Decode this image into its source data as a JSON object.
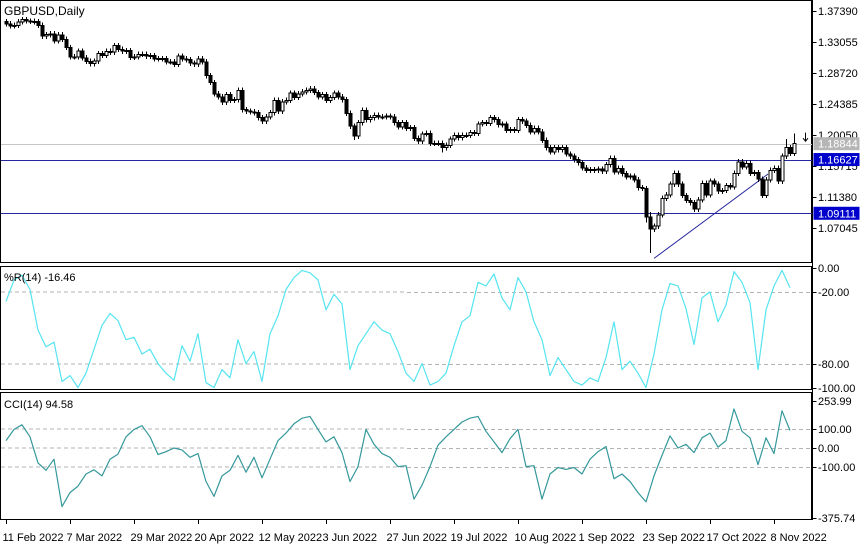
{
  "window": {
    "title": "GBPUSD,Daily"
  },
  "colors": {
    "background": "#ffffff",
    "frame": "#000000",
    "candle_up_fill": "#ffffff",
    "candle_down_fill": "#000000",
    "candle_outline": "#000000",
    "wpr_line": "#55e4f0",
    "cci_line": "#35989b",
    "dashed_level": "#b3b3b3",
    "current_price_line": "#c6c6c6",
    "support_line": "#28289e",
    "badge_current_bg": "#b5b5b5",
    "badge_level_bg": "#0000cc",
    "badge_text": "#ffffff",
    "text": "#000000"
  },
  "chart_data": [
    {
      "type": "candlestick",
      "title": "GBPUSD,Daily",
      "symbol": "GBPUSD",
      "timeframe": "Daily",
      "ylim": [
        1.0229,
        1.3894
      ],
      "x_tick_labels": [
        "11 Feb 2022",
        "7 Mar 2022",
        "29 Mar 2022",
        "20 Apr 2022",
        "12 May 2022",
        "3 Jun 2022",
        "27 Jun 2022",
        "19 Jul 2022",
        "10 Aug 2022",
        "1 Sep 2022",
        "23 Sep 2022",
        "17 Oct 2022",
        "8 Nov 2022"
      ],
      "x_tick_candle_indexes": [
        0,
        16,
        32,
        48,
        64,
        80,
        96,
        112,
        128,
        144,
        160,
        176,
        192
      ],
      "price_axis_ticks": [
        {
          "v": 1.3739,
          "label": "1.37390"
        },
        {
          "v": 1.33055,
          "label": "1.33055"
        },
        {
          "v": 1.2872,
          "label": "1.28720"
        },
        {
          "v": 1.24385,
          "label": "1.24385"
        },
        {
          "v": 1.2005,
          "label": "1.20050"
        },
        {
          "v": 1.15715,
          "label": "1.15715"
        },
        {
          "v": 1.1138,
          "label": "1.11380"
        },
        {
          "v": 1.07045,
          "label": "1.07045"
        }
      ],
      "price_levels": [
        {
          "price": 1.18844,
          "label": "1.18844",
          "kind": "current"
        },
        {
          "price": 1.16627,
          "label": "1.16627",
          "kind": "support"
        },
        {
          "price": 1.09111,
          "label": "1.09111",
          "kind": "support"
        }
      ],
      "current_price": 1.18844,
      "trendline": {
        "from_index": 162,
        "from_price": 1.028,
        "to_index": 190.5,
        "to_price": 1.146
      },
      "candles": {
        "open_rule": "previous_close",
        "first_open": 1.359,
        "default_wick": 0.0038,
        "closes": [
          1.356,
          1.353,
          1.3539,
          1.3588,
          1.3618,
          1.36,
          1.3596,
          1.359,
          1.354,
          1.339,
          1.341,
          1.342,
          1.3324,
          1.3405,
          1.3345,
          1.323,
          1.31,
          1.31,
          1.318,
          1.3085,
          1.3035,
          1.3005,
          1.304,
          1.3145,
          1.312,
          1.3175,
          1.3165,
          1.3255,
          1.3205,
          1.318,
          1.3185,
          1.309,
          1.31,
          1.3135,
          1.3135,
          1.311,
          1.3115,
          1.307,
          1.3075,
          1.3075,
          1.303,
          1.303,
          1.2995,
          1.311,
          1.307,
          1.306,
          1.301,
          1.2998,
          1.307,
          1.303,
          1.2835,
          1.274,
          1.258,
          1.254,
          1.2465,
          1.257,
          1.249,
          1.25,
          1.263,
          1.236,
          1.234,
          1.233,
          1.232,
          1.225,
          1.22,
          1.226,
          1.232,
          1.249,
          1.234,
          1.247,
          1.249,
          1.259,
          1.253,
          1.258,
          1.261,
          1.263,
          1.265,
          1.26,
          1.254,
          1.257,
          1.249,
          1.253,
          1.259,
          1.254,
          1.25,
          1.231,
          1.213,
          1.199,
          1.218,
          1.235,
          1.222,
          1.225,
          1.228,
          1.226,
          1.226,
          1.227,
          1.226,
          1.218,
          1.212,
          1.218,
          1.21,
          1.211,
          1.196,
          1.192,
          1.202,
          1.203,
          1.189,
          1.189,
          1.189,
          1.183,
          1.186,
          1.195,
          1.2,
          1.197,
          1.2,
          1.2,
          1.204,
          1.203,
          1.216,
          1.218,
          1.217,
          1.225,
          1.222,
          1.215,
          1.216,
          1.207,
          1.208,
          1.207,
          1.222,
          1.22,
          1.214,
          1.205,
          1.21,
          1.205,
          1.193,
          1.183,
          1.177,
          1.183,
          1.18,
          1.183,
          1.174,
          1.171,
          1.166,
          1.162,
          1.1545,
          1.151,
          1.152,
          1.1515,
          1.153,
          1.15,
          1.159,
          1.168,
          1.149,
          1.154,
          1.1465,
          1.142,
          1.143,
          1.138,
          1.127,
          1.1258,
          1.086,
          1.069,
          1.073,
          1.089,
          1.112,
          1.117,
          1.132,
          1.147,
          1.132,
          1.116,
          1.109,
          1.106,
          1.097,
          1.11,
          1.133,
          1.117,
          1.136,
          1.132,
          1.122,
          1.123,
          1.13,
          1.128,
          1.147,
          1.163,
          1.156,
          1.161,
          1.147,
          1.148,
          1.139,
          1.116,
          1.138,
          1.151,
          1.154,
          1.136,
          1.171,
          1.183,
          1.175,
          1.1884
        ],
        "overrides": {
          "87": {
            "low": 1.1934
          },
          "109": {
            "low": 1.176
          },
          "160": {
            "low": 1.078
          },
          "161": {
            "low": 1.0357,
            "high": 1.093
          },
          "195": {
            "high": 1.195
          },
          "197": {
            "high": 1.203
          }
        }
      }
    },
    {
      "type": "line",
      "name": "%R(14)",
      "current_value": -16.46,
      "display_label": "%R(14) -16.46",
      "ylim": [
        0,
        -100
      ],
      "sample_step": 2,
      "dashed_levels": [
        -20,
        -80
      ],
      "y_ticks": [
        {
          "v": 0,
          "label": "0.00"
        },
        {
          "v": -20,
          "label": "-20.00"
        },
        {
          "v": -80,
          "label": "-80.00"
        },
        {
          "v": -100,
          "label": "-100.00"
        }
      ],
      "values": [
        -28,
        -10,
        -6,
        -18,
        -52,
        -66,
        -62,
        -95,
        -90,
        -100,
        -88,
        -68,
        -48,
        -38,
        -44,
        -60,
        -58,
        -72,
        -68,
        -80,
        -88,
        -94,
        -65,
        -78,
        -55,
        -96,
        -100,
        -85,
        -92,
        -60,
        -80,
        -70,
        -95,
        -55,
        -40,
        -18,
        -8,
        -2,
        -4,
        -10,
        -35,
        -22,
        -30,
        -85,
        -65,
        -55,
        -45,
        -52,
        -55,
        -70,
        -88,
        -95,
        -80,
        -98,
        -95,
        -88,
        -65,
        -45,
        -40,
        -12,
        -15,
        -5,
        -25,
        -35,
        -8,
        -20,
        -45,
        -60,
        -90,
        -75,
        -85,
        -95,
        -98,
        -92,
        -95,
        -75,
        -45,
        -85,
        -78,
        -88,
        -100,
        -72,
        -35,
        -13,
        -15,
        -34,
        -64,
        -25,
        -20,
        -45,
        -31,
        -3,
        -12,
        -29,
        -85,
        -35,
        -15,
        -2,
        -16.46
      ]
    },
    {
      "type": "line",
      "name": "CCI(14)",
      "current_value": 94.58,
      "display_label": "CCI(14) 94.58",
      "ylim": [
        253.99,
        -375.74
      ],
      "sample_step": 2,
      "dashed_levels": [
        100,
        0,
        -100
      ],
      "y_ticks": [
        {
          "v": 253.99,
          "label": "253.99"
        },
        {
          "v": 100,
          "label": "100.00"
        },
        {
          "v": 0,
          "label": "0.00"
        },
        {
          "v": -100,
          "label": "-100.00"
        },
        {
          "v": -375.74,
          "label": "-375.74"
        }
      ],
      "values": [
        40,
        100,
        125,
        60,
        -80,
        -120,
        -60,
        -315,
        -240,
        -205,
        -140,
        -117,
        -150,
        -60,
        -33,
        60,
        100,
        120,
        60,
        -35,
        -20,
        0,
        -10,
        -50,
        -30,
        -180,
        -260,
        -150,
        -120,
        -40,
        -130,
        -50,
        -160,
        -60,
        40,
        80,
        130,
        160,
        170,
        100,
        33,
        60,
        -25,
        -180,
        -100,
        100,
        20,
        -30,
        -50,
        -100,
        -95,
        -275,
        -200,
        -100,
        15,
        60,
        100,
        140,
        160,
        170,
        90,
        33,
        -25,
        50,
        100,
        -100,
        -95,
        -275,
        -140,
        -105,
        -115,
        -105,
        -140,
        -60,
        -20,
        8,
        -165,
        -140,
        -180,
        -240,
        -290,
        -150,
        -40,
        65,
        0,
        20,
        -25,
        55,
        80,
        5,
        40,
        210,
        90,
        55,
        -90,
        55,
        -30,
        200,
        94.58
      ]
    }
  ]
}
